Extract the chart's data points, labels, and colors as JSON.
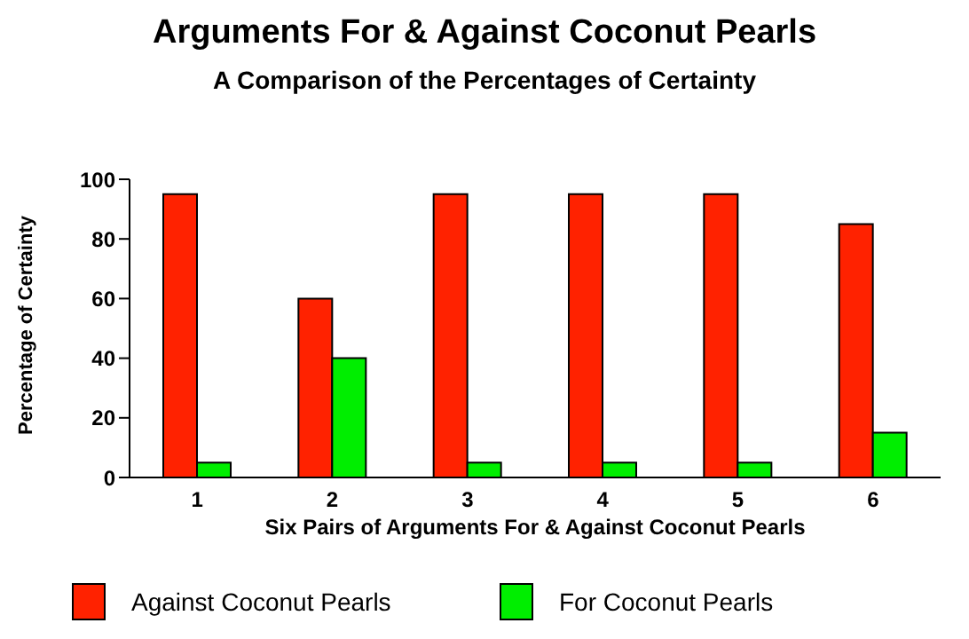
{
  "chart_data": {
    "type": "bar",
    "title": "Arguments For & Against Coconut Pearls",
    "subtitle": "A Comparison of the Percentages of Certainty",
    "xlabel": "Six Pairs of Arguments For & Against Coconut Pearls",
    "ylabel": "Percentage of Certainty",
    "categories": [
      "1",
      "2",
      "3",
      "4",
      "5",
      "6"
    ],
    "series": [
      {
        "name": "Against Coconut Pearls",
        "color": "#ff2200",
        "values": [
          95,
          60,
          95,
          95,
          95,
          85
        ]
      },
      {
        "name": "For Coconut Pearls",
        "color": "#00ee00",
        "values": [
          5,
          40,
          5,
          5,
          5,
          15
        ]
      }
    ],
    "ylim": [
      0,
      100
    ],
    "yticks": [
      0,
      20,
      40,
      60,
      80,
      100
    ],
    "grid": false,
    "legend": "bottom"
  }
}
